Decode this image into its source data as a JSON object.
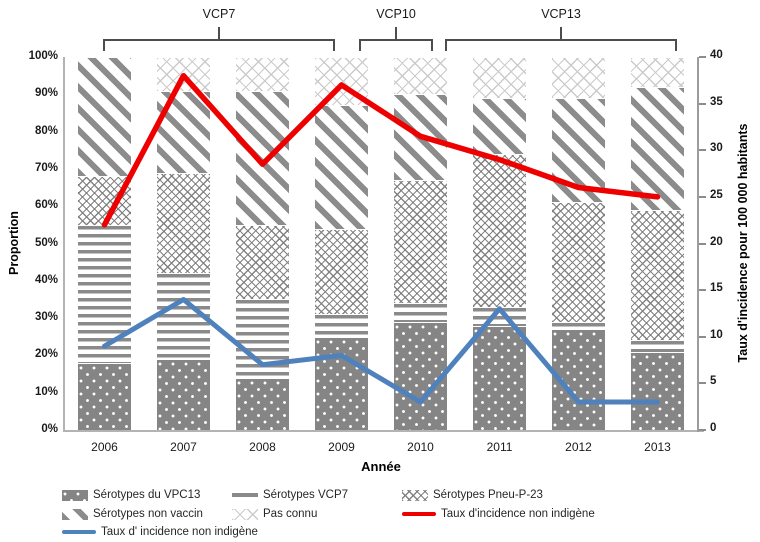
{
  "colors": {
    "red_line": "#ee0000",
    "blue_line": "#4f81bd",
    "bar_gray": "#858585",
    "axis_gray": "#b3b3b3"
  },
  "chart_data": {
    "type": "bar",
    "subtype": "100%-stacked-bars-with-overlaid-lines",
    "categories": [
      "2006",
      "2007",
      "2008",
      "2009",
      "2010",
      "2011",
      "2012",
      "2013"
    ],
    "bar_series": [
      {
        "name": "Sérotypes du VPC13",
        "pattern": "dots",
        "values": [
          18,
          19,
          14,
          25,
          29,
          28,
          27,
          21
        ]
      },
      {
        "name": "Sérotypes VCP7",
        "pattern": "hlines",
        "values": [
          37,
          23,
          21,
          6,
          5,
          5,
          2,
          3
        ]
      },
      {
        "name": "Sérotypes Pneu-P-23",
        "pattern": "crosshatch",
        "values": [
          13,
          27,
          20,
          23,
          33,
          41,
          32,
          35
        ]
      },
      {
        "name": "Sérotypes non vaccin",
        "pattern": "diagonal",
        "values": [
          32,
          22,
          36,
          33,
          23,
          15,
          28,
          33
        ]
      },
      {
        "name": "Pas connu",
        "pattern": "light-lattice",
        "values": [
          0,
          9,
          9,
          13,
          10,
          11,
          11,
          8
        ]
      }
    ],
    "line_series": [
      {
        "name": "Taux d'incidence non indigène",
        "color": "#ee0000",
        "axis": "right",
        "values": [
          22,
          38,
          28.5,
          37,
          31.5,
          29,
          26,
          25
        ]
      },
      {
        "name": "Taux d' incidence non indigène",
        "color": "#4f81bd",
        "axis": "right",
        "values": [
          9,
          14,
          7,
          8,
          3,
          13,
          3,
          3
        ]
      }
    ],
    "left_axis": {
      "title": "Proportion",
      "min": 0,
      "max": 100,
      "tick_step": 10,
      "tick_suffix": "%"
    },
    "right_axis": {
      "title": "Taux d'incidence pour 100 000 habitants",
      "min": 0,
      "max": 40,
      "tick_step": 5
    },
    "x_axis": {
      "title": "Année"
    },
    "grid": false,
    "annotations": [
      {
        "label": "VCP7",
        "span_categories": [
          "2006",
          "2009"
        ]
      },
      {
        "label": "VCP10",
        "span_categories": [
          "2009",
          "2010"
        ]
      },
      {
        "label": "VCP13",
        "span_categories": [
          "2010",
          "2013"
        ]
      }
    ]
  },
  "legend": {
    "items": [
      {
        "label": "Sérotypes du VPC13",
        "swatch": "dots",
        "row": 0,
        "col": 0
      },
      {
        "label": "Sérotypes VCP7",
        "swatch": "gray-line",
        "row": 0,
        "col": 1
      },
      {
        "label": "Sérotypes Pneu-P-23",
        "swatch": "crosshatch",
        "row": 0,
        "col": 2
      },
      {
        "label": "Sérotypes non vaccin",
        "swatch": "diagonal",
        "row": 1,
        "col": 0
      },
      {
        "label": "Pas connu",
        "swatch": "light-lattice",
        "row": 1,
        "col": 1
      },
      {
        "label": "Taux d'incidence non indigène",
        "swatch": "red-line",
        "row": 1,
        "col": 2
      },
      {
        "label": "Taux d' incidence non indigène",
        "swatch": "blue-line",
        "row": 2,
        "col": 0
      }
    ]
  }
}
